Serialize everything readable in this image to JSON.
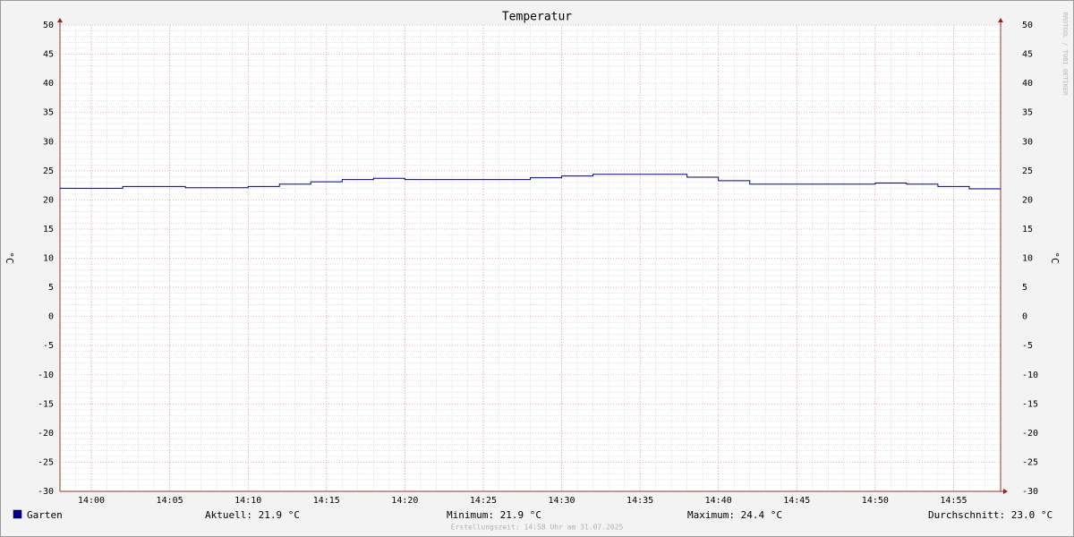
{
  "chart_data": {
    "type": "step",
    "title": "Temperatur",
    "y_label": "°C",
    "watermark": "RRDTOOL / TOBI OETIKER",
    "footer": "Erstellungszeit: 14:58 Uhr am 31.07.2025",
    "x": [
      838,
      840,
      842,
      844,
      846,
      848,
      850,
      852,
      854,
      856,
      858,
      860,
      862,
      864,
      866,
      868,
      870,
      872,
      874,
      876,
      878,
      880,
      882,
      884,
      886,
      888,
      890,
      892,
      894,
      896
    ],
    "series": [
      {
        "name": "Garten",
        "color": "#000096",
        "values": [
          22.0,
          22.0,
          22.3,
          22.3,
          22.1,
          22.1,
          22.3,
          22.7,
          23.1,
          23.5,
          23.7,
          23.5,
          23.5,
          23.5,
          23.5,
          23.8,
          24.1,
          24.4,
          24.4,
          24.4,
          23.9,
          23.3,
          22.7,
          22.7,
          22.7,
          22.7,
          22.9,
          22.7,
          22.3,
          21.9
        ]
      }
    ],
    "stats": [
      "Aktuell: 21.9 °C",
      "Minimum: 21.9 °C",
      "Maximum: 24.4 °C",
      "Durchschnitt: 23.0 °C"
    ],
    "xlim": [
      838,
      898
    ],
    "xticks": [
      {
        "value": 840,
        "label": "14:00"
      },
      {
        "value": 845,
        "label": "14:05"
      },
      {
        "value": 850,
        "label": "14:10"
      },
      {
        "value": 855,
        "label": "14:15"
      },
      {
        "value": 860,
        "label": "14:20"
      },
      {
        "value": 865,
        "label": "14:25"
      },
      {
        "value": 870,
        "label": "14:30"
      },
      {
        "value": 875,
        "label": "14:35"
      },
      {
        "value": 880,
        "label": "14:40"
      },
      {
        "value": 885,
        "label": "14:45"
      },
      {
        "value": 890,
        "label": "14:50"
      },
      {
        "value": 895,
        "label": "14:55"
      }
    ],
    "ylim": [
      -30,
      50
    ],
    "yticks": [
      -30,
      -25,
      -20,
      -15,
      -10,
      -5,
      0,
      5,
      10,
      15,
      20,
      25,
      30,
      35,
      40,
      45,
      50
    ],
    "grid": true
  }
}
